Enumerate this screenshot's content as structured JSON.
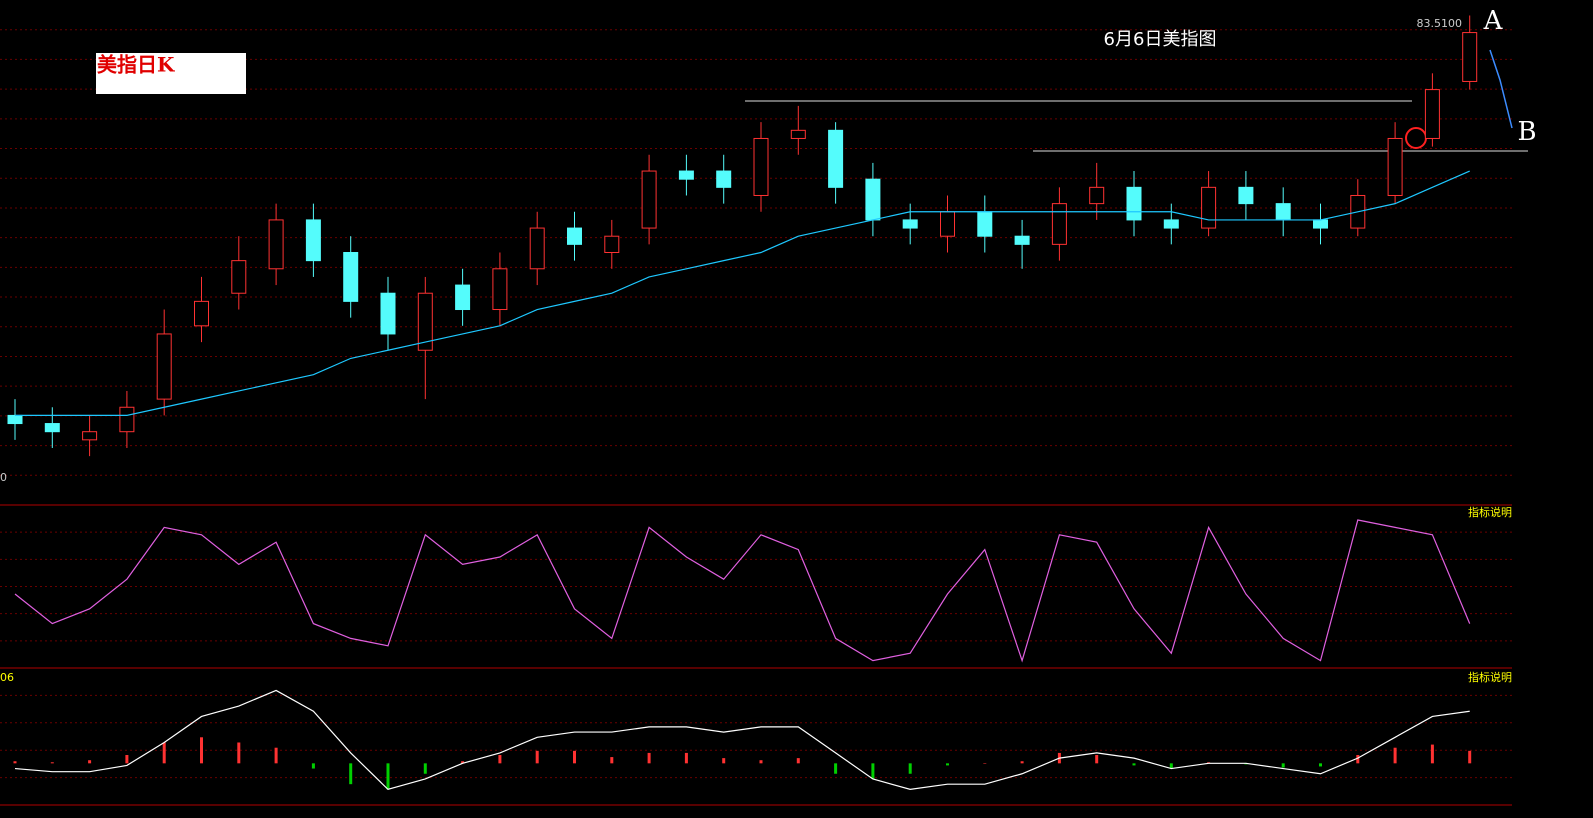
{
  "chart_data": [
    {
      "type": "candlestick",
      "title": "6月6日美指图",
      "label": "美指日K",
      "annotations": [
        "A",
        "B"
      ],
      "high_label": "83.5100",
      "axis_label": "0",
      "ylim": [
        77.5,
        83.7
      ],
      "up_color": "#ff3232",
      "down_color": "#54fcfc",
      "open": [
        78.6,
        78.5,
        78.3,
        78.4,
        78.8,
        79.7,
        80.1,
        80.4,
        81.0,
        80.6,
        80.1,
        79.4,
        80.2,
        79.9,
        80.4,
        80.9,
        80.6,
        80.9,
        81.6,
        81.6,
        81.3,
        82.0,
        82.1,
        81.5,
        81.0,
        80.8,
        81.1,
        80.8,
        80.7,
        81.2,
        81.4,
        81.0,
        80.9,
        81.4,
        81.2,
        81.0,
        80.9,
        81.3,
        82.0,
        82.7
      ],
      "high": [
        78.8,
        78.7,
        78.6,
        78.9,
        79.9,
        80.3,
        80.8,
        81.2,
        81.2,
        80.8,
        80.3,
        80.3,
        80.4,
        80.6,
        81.1,
        81.1,
        81.0,
        81.8,
        81.8,
        81.8,
        82.2,
        82.4,
        82.2,
        81.7,
        81.2,
        81.3,
        81.3,
        81.0,
        81.4,
        81.7,
        81.6,
        81.2,
        81.6,
        81.6,
        81.4,
        81.2,
        81.5,
        82.2,
        82.8,
        83.51
      ],
      "low": [
        78.3,
        78.2,
        78.1,
        78.2,
        78.6,
        79.5,
        79.9,
        80.2,
        80.3,
        79.8,
        79.4,
        78.8,
        79.7,
        79.7,
        80.2,
        80.5,
        80.4,
        80.7,
        81.3,
        81.2,
        81.1,
        81.8,
        81.2,
        80.8,
        80.7,
        80.6,
        80.6,
        80.4,
        80.5,
        81.0,
        80.8,
        80.7,
        80.8,
        81.0,
        80.8,
        80.7,
        80.8,
        81.2,
        81.9,
        82.6
      ],
      "close": [
        78.5,
        78.4,
        78.4,
        78.7,
        79.6,
        80.0,
        80.5,
        81.0,
        80.5,
        80.0,
        79.6,
        80.1,
        79.9,
        80.4,
        80.9,
        80.7,
        80.8,
        81.6,
        81.5,
        81.4,
        82.0,
        82.1,
        81.4,
        81.0,
        80.9,
        81.1,
        80.8,
        80.7,
        81.2,
        81.4,
        81.0,
        80.9,
        81.4,
        81.2,
        81.0,
        80.9,
        81.3,
        82.0,
        82.6,
        83.3
      ],
      "series": [
        {
          "color": "#1ec8ff",
          "values": [
            78.6,
            78.6,
            78.6,
            78.6,
            78.7,
            78.8,
            78.9,
            79.0,
            79.1,
            79.3,
            79.4,
            79.5,
            79.6,
            79.7,
            79.9,
            80.0,
            80.1,
            80.3,
            80.4,
            80.5,
            80.6,
            80.8,
            80.9,
            81.0,
            81.1,
            81.1,
            81.1,
            81.1,
            81.1,
            81.1,
            81.1,
            81.1,
            81.0,
            81.0,
            81.0,
            81.0,
            81.1,
            81.2,
            81.4,
            81.6
          ]
        }
      ]
    },
    {
      "type": "line",
      "label": "指标说明",
      "ylim": [
        0,
        100
      ],
      "series": [
        {
          "color": "#e060e0",
          "values": [
            50,
            30,
            40,
            60,
            95,
            90,
            70,
            85,
            30,
            20,
            15,
            90,
            70,
            75,
            90,
            40,
            20,
            95,
            75,
            60,
            90,
            80,
            20,
            5,
            10,
            50,
            80,
            5,
            90,
            85,
            40,
            10,
            95,
            50,
            20,
            5,
            100,
            95,
            90,
            30
          ]
        }
      ]
    },
    {
      "type": "macd",
      "label": "指标说明",
      "axis_label": "06",
      "ylim": [
        -0.4,
        0.8
      ],
      "up_color": "#ff3232",
      "down_color": "#00d000",
      "values": [
        0.02,
        0.01,
        0.03,
        0.08,
        0.2,
        0.25,
        0.2,
        0.15,
        -0.05,
        -0.2,
        -0.25,
        -0.1,
        0.02,
        0.08,
        0.12,
        0.12,
        0.06,
        0.1,
        0.1,
        0.05,
        0.03,
        0.05,
        -0.1,
        -0.15,
        -0.1,
        -0.02,
        0.0,
        0.02,
        0.1,
        0.08,
        -0.02,
        -0.05,
        0.01,
        -0.01,
        -0.04,
        -0.03,
        0.08,
        0.15,
        0.18,
        0.12
      ],
      "series": [
        {
          "color": "#ffffff",
          "values": [
            -0.05,
            -0.08,
            -0.08,
            -0.02,
            0.2,
            0.45,
            0.55,
            0.7,
            0.5,
            0.1,
            -0.25,
            -0.15,
            0.0,
            0.1,
            0.25,
            0.3,
            0.3,
            0.35,
            0.35,
            0.3,
            0.35,
            0.35,
            0.1,
            -0.15,
            -0.25,
            -0.2,
            -0.2,
            -0.1,
            0.05,
            0.1,
            0.05,
            -0.05,
            0.0,
            0.0,
            -0.05,
            -0.1,
            0.05,
            0.25,
            0.45,
            0.5
          ]
        }
      ]
    }
  ]
}
